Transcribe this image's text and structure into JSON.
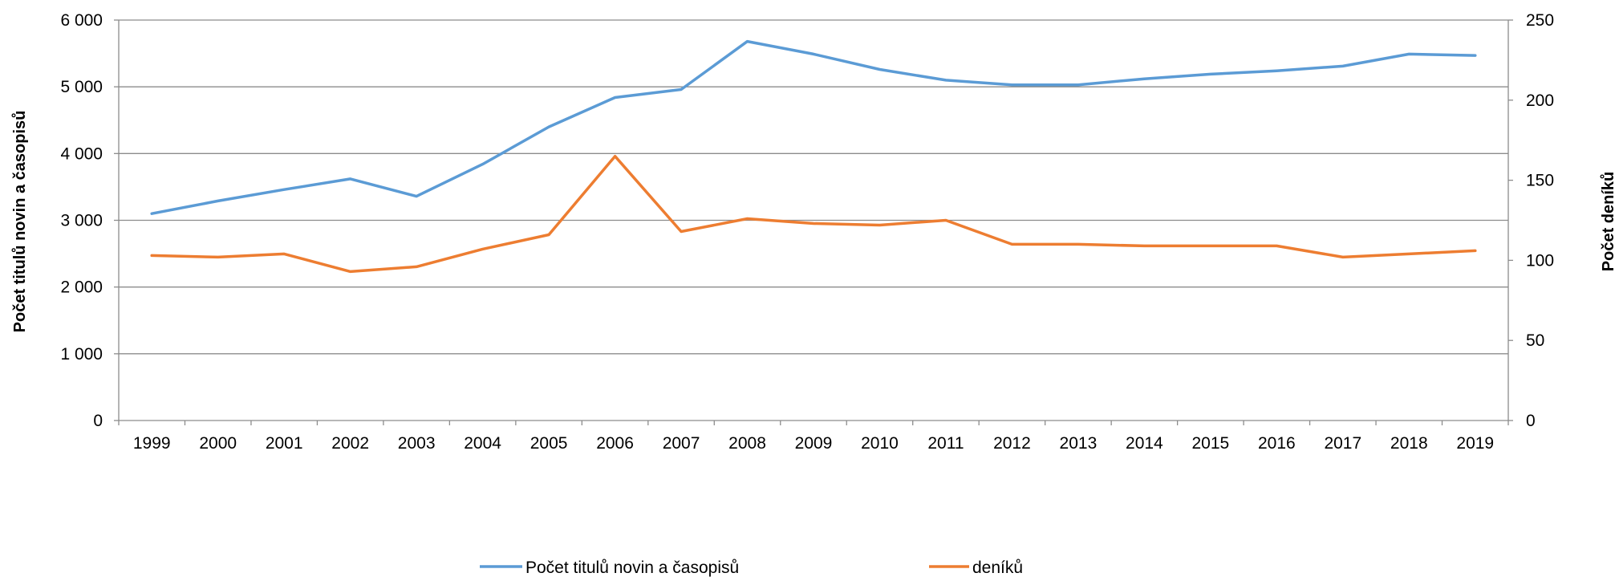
{
  "chart_data": {
    "type": "line",
    "title": "",
    "categories": [
      "1999",
      "2000",
      "2001",
      "2002",
      "2003",
      "2004",
      "2005",
      "2006",
      "2007",
      "2008",
      "2009",
      "2010",
      "2011",
      "2012",
      "2013",
      "2014",
      "2015",
      "2016",
      "2017",
      "2018",
      "2019"
    ],
    "y_left": {
      "label": "Počet titulů novin a časopisů",
      "range": [
        0,
        6000
      ],
      "ticks": [
        0,
        1000,
        2000,
        3000,
        4000,
        5000,
        6000
      ],
      "tick_labels": [
        "0",
        "1 000",
        "2 000",
        "3 000",
        "4 000",
        "5 000",
        "6 000"
      ]
    },
    "y_right": {
      "label": "Počet deníků",
      "range": [
        0,
        250
      ],
      "ticks": [
        0,
        50,
        100,
        150,
        200,
        250
      ],
      "tick_labels": [
        "0",
        "50",
        "100",
        "150",
        "200",
        "250"
      ]
    },
    "grid": true,
    "legend_position": "bottom",
    "series": [
      {
        "name": "Počet titulů novin a časopisů",
        "axis": "left",
        "color": "#5b9bd5",
        "values": [
          3100,
          3290,
          3460,
          3620,
          3360,
          3840,
          4400,
          4840,
          4960,
          5680,
          5490,
          5260,
          5100,
          5030,
          5030,
          5120,
          5190,
          5240,
          5310,
          5490,
          5470
        ]
      },
      {
        "name": "deníků",
        "axis": "right",
        "color": "#ed7d31",
        "values": [
          103,
          102,
          104,
          93,
          96,
          107,
          116,
          165,
          118,
          126,
          123,
          122,
          125,
          110,
          110,
          109,
          109,
          109,
          102,
          104,
          106
        ]
      }
    ]
  }
}
